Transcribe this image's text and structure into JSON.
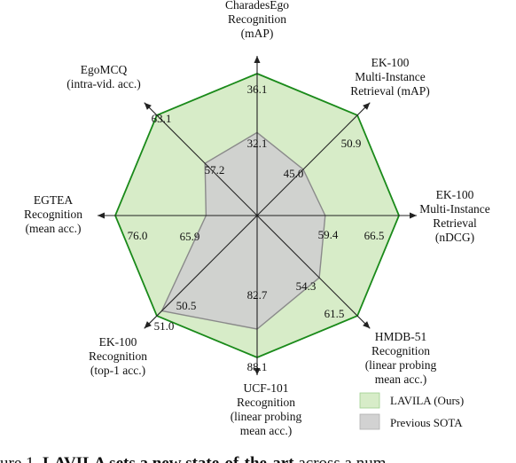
{
  "chart_data": {
    "type": "radar",
    "axes": [
      {
        "label_lines": [
          "CharadesEgo",
          "Recognition",
          "(mAP)"
        ],
        "ours": "36.1",
        "sota": "32.1"
      },
      {
        "label_lines": [
          "EK-100",
          "Multi-Instance",
          "Retrieval (mAP)"
        ],
        "ours": "50.9",
        "sota": "45.0"
      },
      {
        "label_lines": [
          "EK-100",
          "Multi-Instance",
          "Retrieval",
          "(nDCG)"
        ],
        "ours": "66.5",
        "sota": "59.4"
      },
      {
        "label_lines": [
          "HMDB-51",
          "Recognition",
          "(linear probing",
          "mean acc.)"
        ],
        "ours": "61.5",
        "sota": "54.3"
      },
      {
        "label_lines": [
          "UCF-101",
          "Recognition",
          "(linear probing",
          "mean acc.)"
        ],
        "ours": "88.1",
        "sota": "82.7"
      },
      {
        "label_lines": [
          "EK-100",
          "Recognition",
          "(top-1 acc.)"
        ],
        "ours": "51.0",
        "sota": "50.5"
      },
      {
        "label_lines": [
          "EGTEA",
          "Recognition",
          "(mean acc.)"
        ],
        "ours": "76.0",
        "sota": "65.9"
      },
      {
        "label_lines": [
          "EgoMCQ",
          "(intra-vid.  acc.)"
        ],
        "ours": "63.1",
        "sota": "57.2"
      }
    ],
    "sota_normalized": [
      0.585,
      0.46,
      0.48,
      0.62,
      0.8,
      0.95,
      0.36,
      0.52
    ],
    "series": [
      {
        "name": "LAVILA (Ours)",
        "color": "#1a8a1a",
        "fill": "#d7ecc8"
      },
      {
        "name": "Previous SOTA",
        "color": "#8a8a8a",
        "fill": "#cfcfcf"
      }
    ],
    "legend_placement": "bottom-right",
    "grid": true
  },
  "legend": {
    "ours_label": "LAVILA (Ours)",
    "sota_label": "Previous SOTA"
  },
  "caption": {
    "prefix": "ure 1. ",
    "bold": "LAVILA sets a new state-of-the-art",
    "rest": " across a num"
  }
}
